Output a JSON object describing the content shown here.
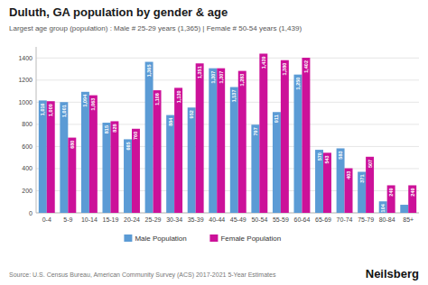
{
  "chart_data": {
    "type": "bar",
    "title": "Duluth, GA population by gender & age",
    "subtitle": "Largest age group (population) : Male # 25-29 years (1,365) | Female # 50-54 years (1,439)",
    "annotations": [
      "Source: U.S. Census Bureau, American Community Survey (ACS) 2017-2021 5-Year Estimates",
      "Neilsberg"
    ],
    "categories": [
      "0-4",
      "5-9",
      "10-14",
      "15-19",
      "20-24",
      "25-29",
      "30-34",
      "35-39",
      "40-44",
      "45-49",
      "50-54",
      "55-59",
      "60-64",
      "65-69",
      "70-74",
      "75-79",
      "80-84",
      "85+"
    ],
    "series": [
      {
        "name": "Male Population",
        "color": "#5b9bd5",
        "values": [
          1016,
          1001,
          1094,
          815,
          665,
          1365,
          884,
          952,
          1307,
          1137,
          797,
          911,
          1250,
          570,
          583,
          371,
          104,
          73
        ],
        "value_labels": [
          "1,016",
          "1,001",
          "1,094",
          "815",
          "665",
          "1,365",
          "884",
          "952",
          "1,307",
          "1,137",
          "797",
          "911",
          "1,250",
          "570",
          "583",
          "371",
          "104",
          null
        ]
      },
      {
        "name": "Female Population",
        "color": "#cc1199",
        "values": [
          1009,
          680,
          1063,
          828,
          760,
          1108,
          1130,
          1351,
          1307,
          1283,
          1439,
          1380,
          1402,
          543,
          403,
          507,
          249,
          249
        ],
        "value_labels": [
          "1,009",
          "680",
          "1,063",
          "828",
          "760",
          "1,108",
          "1,130",
          "1,351",
          "1,307",
          "1,283",
          "1,439",
          "1,380",
          "1,402",
          "543",
          "403",
          "507",
          "249",
          "249"
        ]
      }
    ],
    "ylim": [
      0,
      1500
    ],
    "yticks": [
      0,
      200,
      400,
      600,
      800,
      1000,
      1200,
      1400
    ],
    "grid": true,
    "legend": "bottom",
    "data_labels": true
  }
}
